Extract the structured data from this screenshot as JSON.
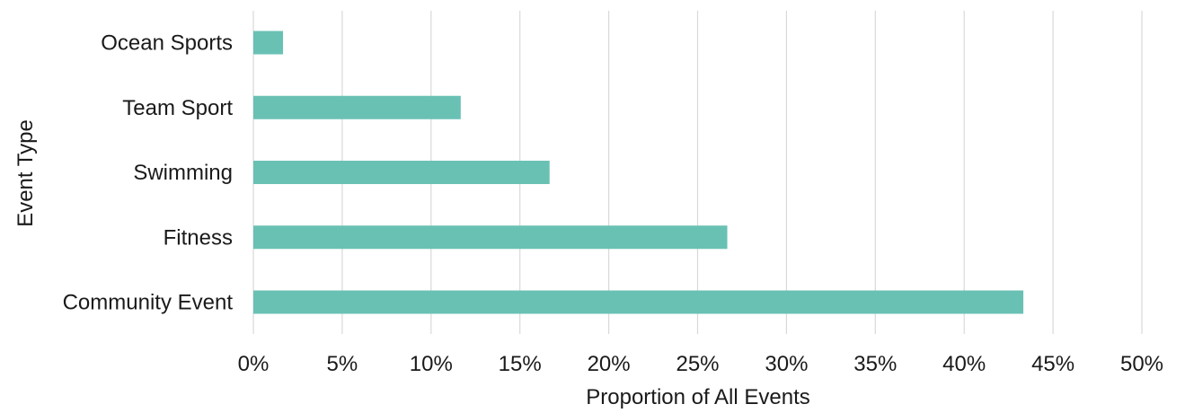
{
  "chart_data": {
    "type": "bar",
    "orientation": "horizontal",
    "categories": [
      "Ocean Sports",
      "Team Sport",
      "Swimming",
      "Fitness",
      "Community Event"
    ],
    "values": [
      0.0167,
      0.1167,
      0.1667,
      0.2667,
      0.4333
    ],
    "xlabel": "Proportion of All Events",
    "ylabel": "Event Type",
    "xlim": [
      0,
      0.5
    ],
    "xticks": [
      0,
      0.05,
      0.1,
      0.15,
      0.2,
      0.25,
      0.3,
      0.35,
      0.4,
      0.45,
      0.5
    ],
    "xtick_labels": [
      "0%",
      "5%",
      "10%",
      "15%",
      "20%",
      "25%",
      "30%",
      "35%",
      "40%",
      "45%",
      "50%"
    ],
    "grid": "vertical",
    "legend": "none",
    "colors": {
      "bar": "#69c1b4",
      "grid": "#d9d9d9"
    }
  }
}
